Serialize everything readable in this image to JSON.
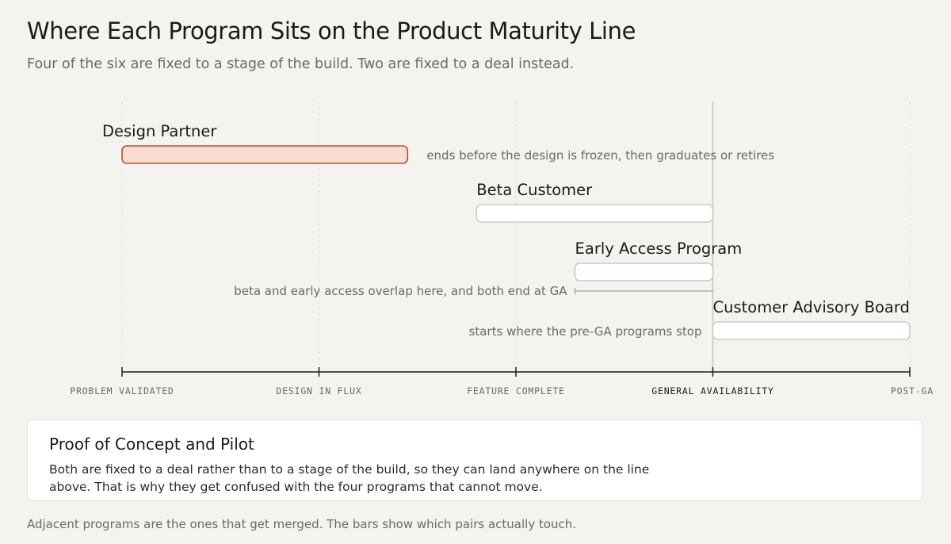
{
  "header": {
    "title": "Where Each Program Sits on the Product Maturity Line",
    "subtitle": "Four of the six are fixed to a stage of the build. Two are fixed to a deal instead."
  },
  "chart_data": {
    "type": "timeline",
    "axis": {
      "stages": [
        "PROBLEM VALIDATED",
        "DESIGN IN FLUX",
        "FEATURE COMPLETE",
        "GENERAL AVAILABILITY",
        "POST-GA"
      ],
      "emphasized_stage": "GENERAL AVAILABILITY"
    },
    "bars": [
      {
        "name": "Design Partner",
        "start": 0,
        "end": 1.45,
        "highlight": true,
        "note": "ends before the design is frozen, then graduates or retires",
        "note_side": "right"
      },
      {
        "name": "Beta Customer",
        "start": 1.8,
        "end": 3,
        "highlight": false,
        "note": "",
        "note_side": ""
      },
      {
        "name": "Early Access Program",
        "start": 2.3,
        "end": 3,
        "highlight": false,
        "note": "beta and early access overlap here, and both end at GA",
        "note_side": "below-left"
      },
      {
        "name": "Customer Advisory Board",
        "start": 3,
        "end": 4,
        "highlight": false,
        "note": "starts where the pre-GA programs stop",
        "note_side": "left"
      }
    ],
    "colors": {
      "highlight_fill": "#fbdcd3",
      "highlight_stroke": "#bf4a31",
      "bar_fill": "#ffffff",
      "bar_stroke": "#cfcac2",
      "axis": "#1f1d1a",
      "ga_line": "#c9c4bc"
    }
  },
  "card": {
    "title": "Proof of Concept and Pilot",
    "body": "Both are fixed to a deal rather than to a stage of the build, so they can land anywhere on the line above. That is why they get confused with the four programs that cannot move."
  },
  "footnote": "Adjacent programs are the ones that get merged. The bars show which pairs actually touch."
}
